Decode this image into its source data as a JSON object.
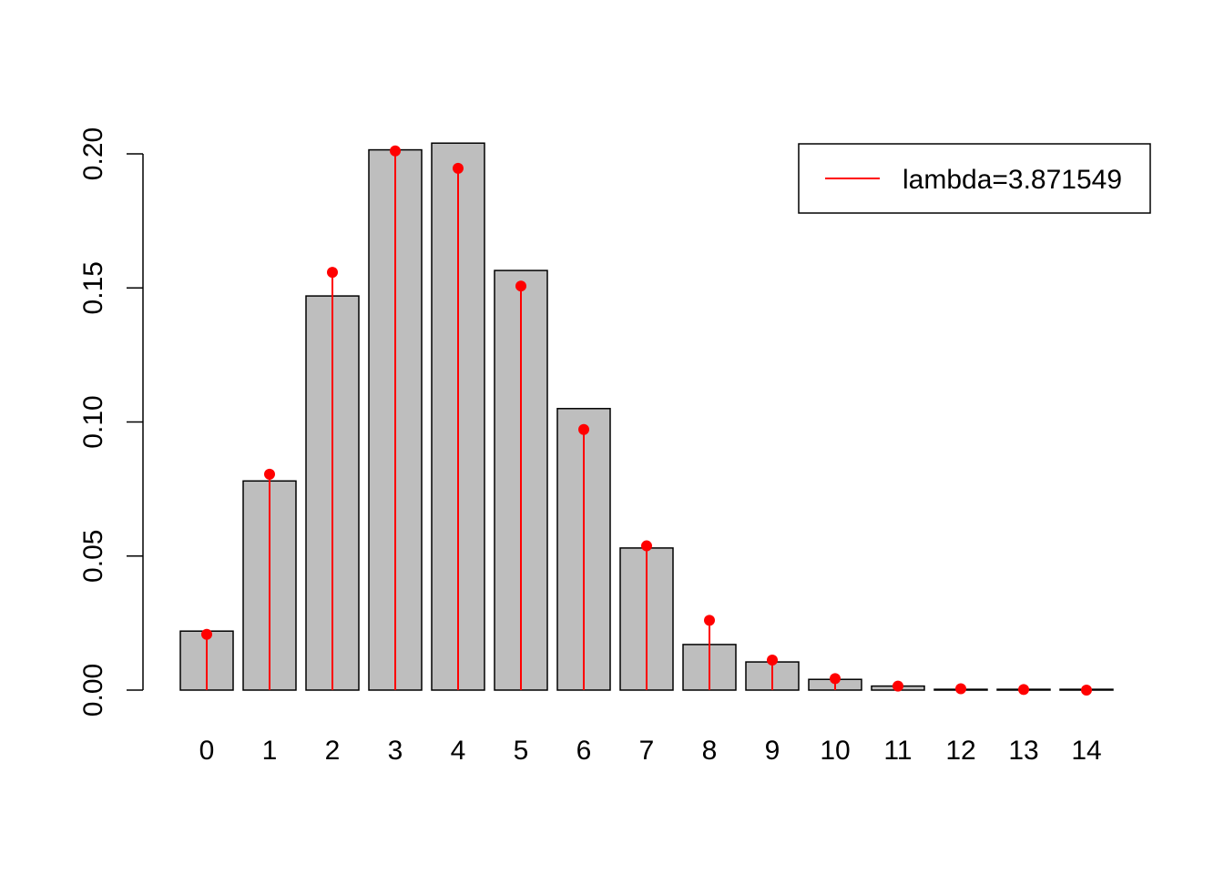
{
  "chart_data": {
    "type": "bar",
    "categories": [
      "0",
      "1",
      "2",
      "3",
      "4",
      "5",
      "6",
      "7",
      "8",
      "9",
      "10",
      "11",
      "12",
      "13",
      "14"
    ],
    "series": [
      {
        "kind": "bars",
        "values": [
          0.022,
          0.078,
          0.147,
          0.2015,
          0.204,
          0.1565,
          0.105,
          0.053,
          0.017,
          0.0105,
          0.004,
          0.0015,
          0.0003,
          0.0003,
          0.0003
        ],
        "color": "#bebebe"
      },
      {
        "kind": "stems-with-points",
        "name": "lambda=3.871549",
        "values": [
          0.0208,
          0.0805,
          0.1558,
          0.2011,
          0.1946,
          0.1507,
          0.0972,
          0.0538,
          0.026,
          0.0112,
          0.0043,
          0.0015,
          0.0005,
          0.0002,
          0.0
        ],
        "color": "#ff0000"
      }
    ],
    "y_ticks": [
      "0.00",
      "0.05",
      "0.10",
      "0.15",
      "0.20"
    ],
    "y_tick_values": [
      0,
      0.05,
      0.1,
      0.15,
      0.2
    ],
    "ylim": [
      0,
      0.204
    ],
    "title": "",
    "xlabel": "",
    "ylabel": "",
    "grid": false,
    "legend": {
      "position": "top-right",
      "label": "lambda=3.871549"
    }
  }
}
